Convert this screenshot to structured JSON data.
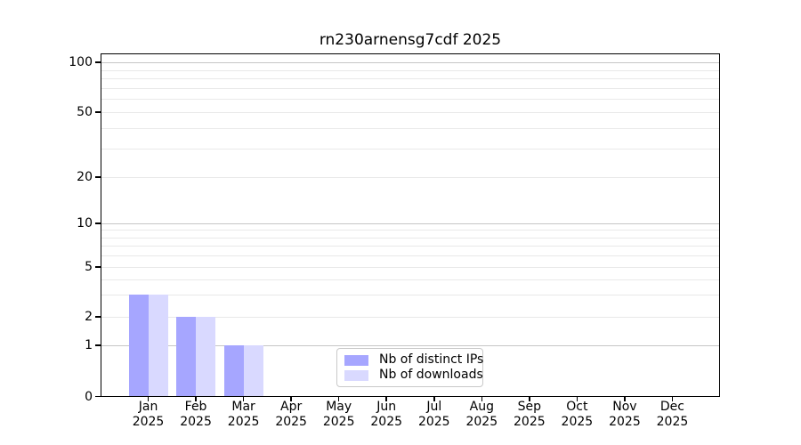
{
  "chart_data": {
    "type": "bar",
    "title": "rn230arnensg7cdf 2025",
    "year": "2025",
    "months": [
      "Jan",
      "Feb",
      "Mar",
      "Apr",
      "May",
      "Jun",
      "Jul",
      "Aug",
      "Sep",
      "Oct",
      "Nov",
      "Dec"
    ],
    "categories": [
      "Jan 2025",
      "Feb 2025",
      "Mar 2025",
      "Apr 2025",
      "May 2025",
      "Jun 2025",
      "Jul 2025",
      "Aug 2025",
      "Sep 2025",
      "Oct 2025",
      "Nov 2025",
      "Dec 2025"
    ],
    "series": [
      {
        "name": "Nb of distinct IPs",
        "color": "#a6a6ff",
        "values": [
          3,
          2,
          1,
          0,
          0,
          0,
          0,
          0,
          0,
          0,
          0,
          0
        ]
      },
      {
        "name": "Nb of downloads",
        "color": "#d9d9ff",
        "values": [
          3,
          2,
          1,
          0,
          0,
          0,
          0,
          0,
          0,
          0,
          0,
          0
        ]
      }
    ],
    "yscale": "log-like (0,1,2,5,10,20,50,100)",
    "yticks": [
      0,
      1,
      2,
      5,
      10,
      20,
      50,
      100
    ],
    "major_grid_values": [
      1,
      10,
      100
    ],
    "minor_grid_values": [
      2,
      3,
      4,
      5,
      6,
      7,
      8,
      9,
      20,
      30,
      40,
      50,
      60,
      70,
      80,
      90
    ],
    "ylim": [
      0,
      115
    ],
    "grid": true,
    "legend_position": "lower center",
    "colors": {
      "grid_major": "#c6c6c6",
      "grid_minor": "#e9e9e9",
      "axis": "#000000",
      "background": "#ffffff",
      "text": "#000000"
    }
  }
}
